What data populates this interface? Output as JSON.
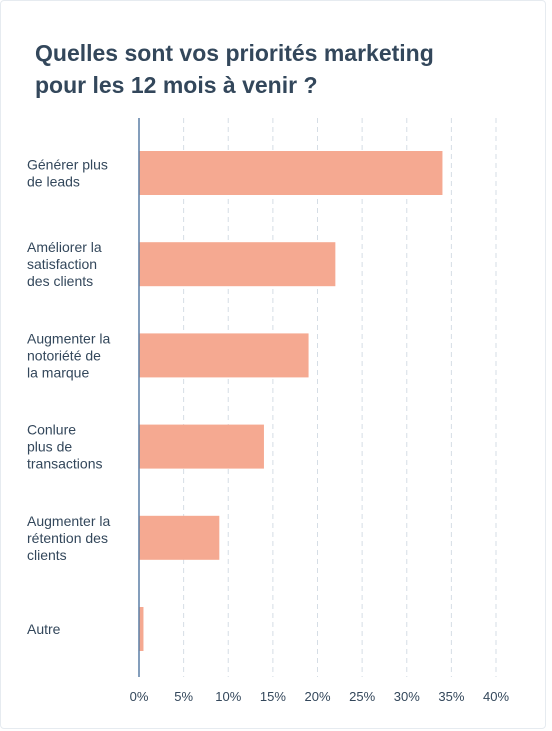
{
  "chart_data": {
    "type": "bar",
    "orientation": "horizontal",
    "title_lines": [
      "Quelles sont vos priorités marketing",
      "pour les 12 mois à venir ?"
    ],
    "categories": [
      [
        "Générer plus",
        "de leads"
      ],
      [
        "Améliorer la",
        "satisfaction",
        "des clients"
      ],
      [
        "Augmenter la",
        "notoriété de",
        "la marque"
      ],
      [
        "Conlure",
        "plus de",
        "transactions"
      ],
      [
        "Augmenter la",
        "rétention des",
        "clients"
      ],
      [
        "Autre"
      ]
    ],
    "values": [
      34,
      22,
      19,
      14,
      9,
      0.5
    ],
    "xlim": [
      0,
      40
    ],
    "xticks": [
      0,
      5,
      10,
      15,
      20,
      25,
      30,
      35,
      40
    ],
    "xtick_labels": [
      "0%",
      "5%",
      "10%",
      "15%",
      "20%",
      "25%",
      "30%",
      "35%",
      "40%"
    ],
    "grid": "vertical dashed",
    "bar_color": "#f5a991",
    "axis_color": "#5b7fa6",
    "grid_color": "#d5dde5",
    "text_color": "#33475b"
  }
}
